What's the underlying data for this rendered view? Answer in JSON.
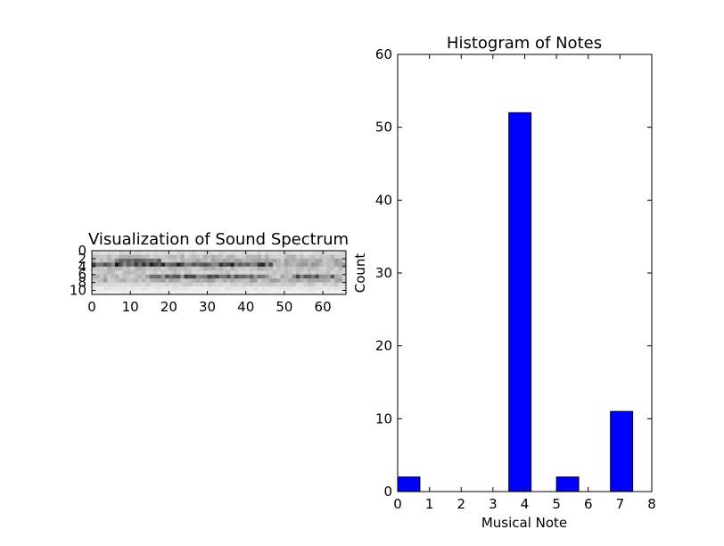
{
  "chart_data": [
    {
      "type": "heatmap",
      "title": "Visualization of Sound Spectrum",
      "xlim": [
        0,
        66
      ],
      "ylim": [
        11,
        0
      ],
      "xticks": [
        0,
        10,
        20,
        30,
        40,
        50,
        60
      ],
      "yticks": [
        0,
        2,
        4,
        6,
        8,
        10
      ],
      "colormap": "grayscale (dark = high)",
      "rows": 11,
      "cols": 66,
      "profile": {
        "row_intensity": [
          0.15,
          0.3,
          0.35,
          0.85,
          0.3,
          0.25,
          0.7,
          0.35,
          0.2,
          0.1,
          0.05
        ],
        "notes": "dark band across row 3 from x=0 to ~45; second band near row 6 from ~15 to ~45 and ~52 to ~62"
      }
    },
    {
      "type": "bar",
      "title": "Histogram of Notes",
      "xlabel": "Musical Note",
      "ylabel": "Count",
      "xlim": [
        0,
        8
      ],
      "ylim": [
        0,
        60
      ],
      "xticks": [
        0,
        1,
        2,
        3,
        4,
        5,
        6,
        7,
        8
      ],
      "yticks": [
        0,
        10,
        20,
        30,
        40,
        50,
        60
      ],
      "bar_color": "#0000ff",
      "bars": [
        {
          "x0": 0.0,
          "x1": 0.7,
          "value": 2
        },
        {
          "x0": 3.5,
          "x1": 4.2,
          "value": 52
        },
        {
          "x0": 5.0,
          "x1": 5.7,
          "value": 2
        },
        {
          "x0": 6.7,
          "x1": 7.4,
          "value": 11
        }
      ],
      "grid": false,
      "legend": "none"
    }
  ]
}
